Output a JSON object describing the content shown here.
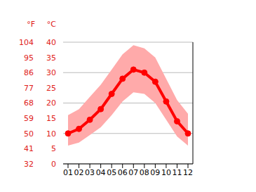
{
  "chart_data": {
    "type": "line",
    "categories": [
      "01",
      "02",
      "03",
      "04",
      "05",
      "06",
      "07",
      "08",
      "09",
      "10",
      "11",
      "12"
    ],
    "y_label": "°C",
    "y2_label": "°F",
    "ylim": [
      0,
      40
    ],
    "yticks": [
      0,
      5,
      10,
      15,
      20,
      25,
      30,
      35,
      40
    ],
    "y2lim": [
      32,
      104
    ],
    "y2ticks": [
      32,
      41,
      50,
      59,
      68,
      77,
      86,
      95,
      104
    ],
    "grid": true,
    "series": [
      {
        "type": "band",
        "color": "#ffaaaa",
        "low": [
          6,
          7,
          9.5,
          12,
          16,
          20.5,
          23.5,
          23,
          20,
          14.5,
          9,
          6
        ],
        "high": [
          16,
          18,
          22,
          26,
          31,
          36,
          39,
          38,
          35,
          28,
          21,
          16.5
        ]
      },
      {
        "type": "line",
        "color": "#ff0000",
        "marker": "circle",
        "values": [
          10,
          11.5,
          14.5,
          18,
          23,
          28,
          31,
          30,
          27,
          20.5,
          14,
          10
        ]
      }
    ]
  }
}
